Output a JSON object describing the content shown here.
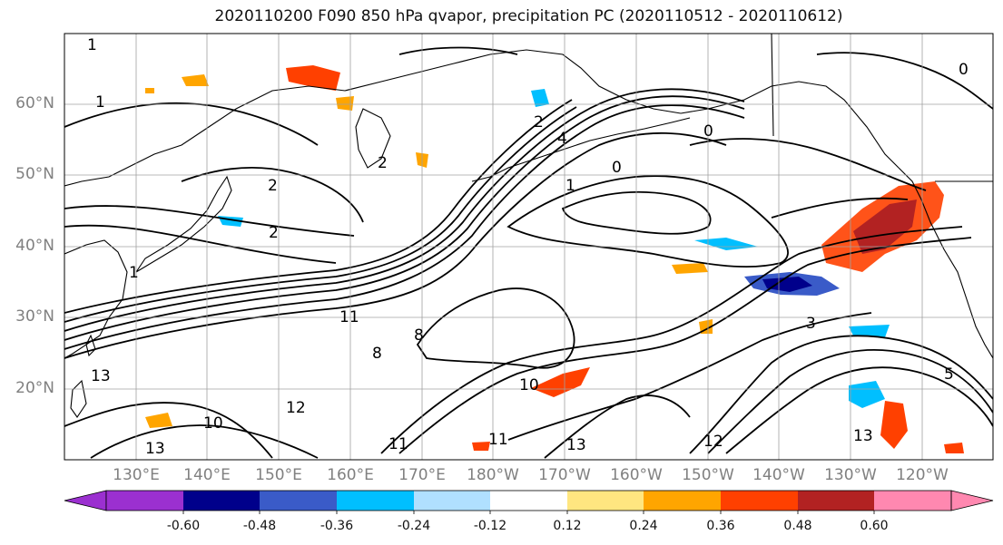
{
  "title": "2020110200 F090 850 hPa qvapor, precipitation PC (2020110512 - 2020110612)",
  "lat_labels": [
    "60°N",
    "50°N",
    "40°N",
    "30°N",
    "20°N"
  ],
  "lon_labels": [
    "130°E",
    "140°E",
    "150°E",
    "160°E",
    "170°E",
    "180°W",
    "170°W",
    "160°W",
    "150°W",
    "140°W",
    "130°W",
    "120°W"
  ],
  "colorbar": {
    "colors": [
      "#9b30d0",
      "#00008b",
      "#3a5bc8",
      "#00bfff",
      "#b0e0ff",
      "#ffffff",
      "#ffe680",
      "#ffa500",
      "#ff4000",
      "#b22222",
      "#ff88b0"
    ],
    "tick_labels": [
      "-0.60",
      "-0.48",
      "-0.36",
      "-0.24",
      "-0.12",
      "0.12",
      "0.24",
      "0.36",
      "0.48",
      "0.60"
    ]
  },
  "contour_labels": [
    "1",
    "1",
    "1",
    "2",
    "2",
    "2",
    "2",
    "4",
    "0",
    "0",
    "0",
    "1",
    "3",
    "5",
    "8",
    "8",
    "10",
    "10",
    "11",
    "11",
    "11",
    "12",
    "12",
    "13",
    "13",
    "13",
    "13"
  ]
}
